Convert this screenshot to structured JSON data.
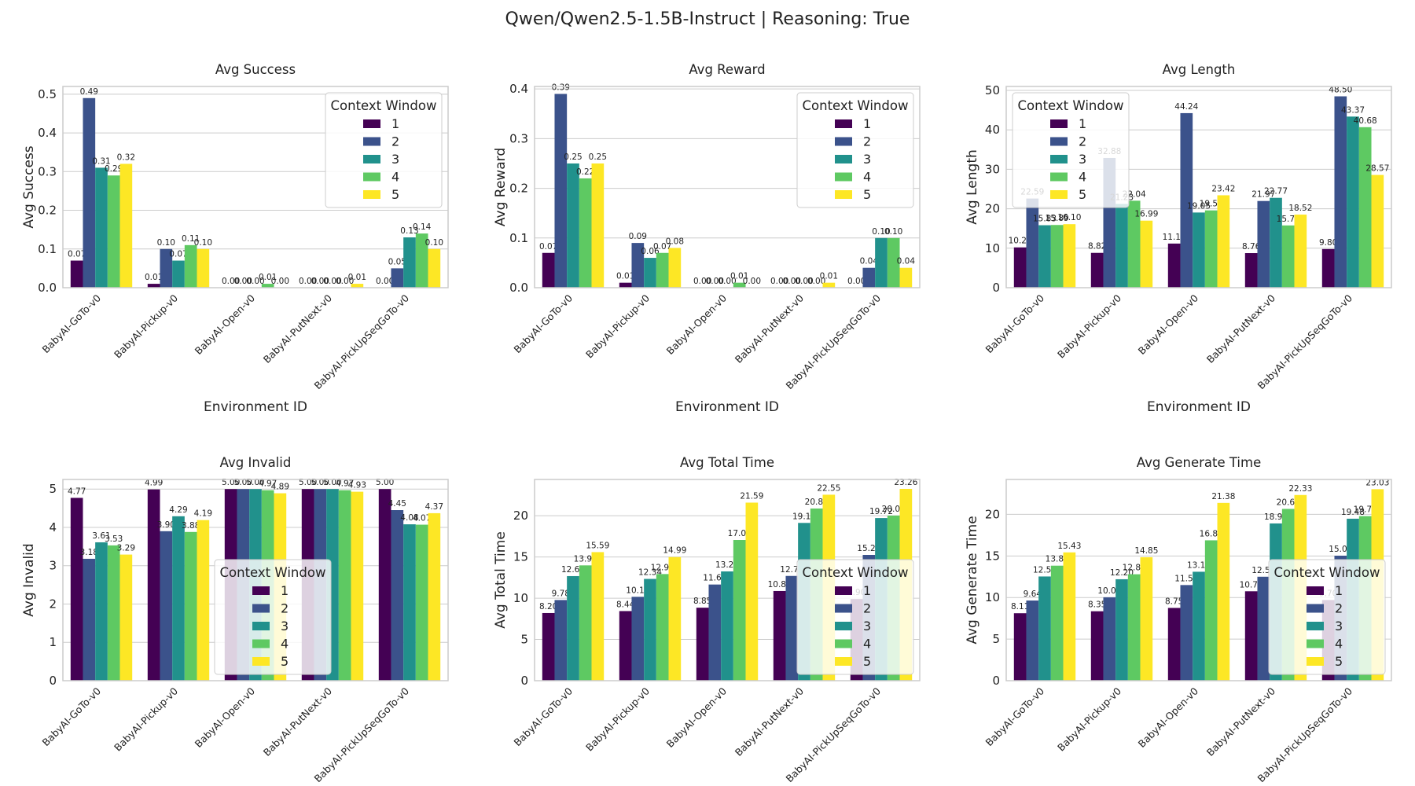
{
  "suptitle": "Qwen/Qwen2.5-1.5B-Instruct | Reasoning: True",
  "palette": [
    "#440154",
    "#3b528b",
    "#21918c",
    "#5ec962",
    "#fde725"
  ],
  "chart_data": [
    {
      "type": "bar",
      "title": "Avg Success",
      "xlabel": "Environment ID",
      "ylabel": "Avg Success",
      "categories": [
        "BabyAI-GoTo-v0",
        "BabyAI-Pickup-v0",
        "BabyAI-Open-v0",
        "BabyAI-PutNext-v0",
        "BabyAI-PickUpSeqGoTo-v0"
      ],
      "ylim": [
        0,
        0.52
      ],
      "yticks": [
        0.0,
        0.1,
        0.2,
        0.3,
        0.4,
        0.5
      ],
      "tick_decimals": 1,
      "legend_title": "Context Window",
      "legend_position": "upper right",
      "grid": true,
      "series": [
        {
          "name": "1",
          "values": [
            0.07,
            0.01,
            0.0,
            0.0,
            0.0
          ]
        },
        {
          "name": "2",
          "values": [
            0.49,
            0.1,
            0.0,
            0.0,
            0.05
          ]
        },
        {
          "name": "3",
          "values": [
            0.31,
            0.07,
            0.0,
            0.0,
            0.13
          ]
        },
        {
          "name": "4",
          "values": [
            0.29,
            0.11,
            0.01,
            0.0,
            0.14
          ]
        },
        {
          "name": "5",
          "values": [
            0.32,
            0.1,
            0.0,
            0.01,
            0.1
          ]
        }
      ]
    },
    {
      "type": "bar",
      "title": "Avg Reward",
      "xlabel": "Environment ID",
      "ylabel": "Avg Reward",
      "categories": [
        "BabyAI-GoTo-v0",
        "BabyAI-Pickup-v0",
        "BabyAI-Open-v0",
        "BabyAI-PutNext-v0",
        "BabyAI-PickUpSeqGoTo-v0"
      ],
      "ylim": [
        0,
        0.405
      ],
      "yticks": [
        0.0,
        0.1,
        0.2,
        0.3,
        0.4
      ],
      "tick_decimals": 1,
      "legend_title": "Context Window",
      "legend_position": "upper right",
      "grid": true,
      "series": [
        {
          "name": "1",
          "values": [
            0.07,
            0.01,
            0.0,
            0.0,
            0.0
          ]
        },
        {
          "name": "2",
          "values": [
            0.39,
            0.09,
            0.0,
            0.0,
            0.04
          ]
        },
        {
          "name": "3",
          "values": [
            0.25,
            0.06,
            0.0,
            0.0,
            0.1
          ]
        },
        {
          "name": "4",
          "values": [
            0.22,
            0.07,
            0.01,
            0.0,
            0.1
          ]
        },
        {
          "name": "5",
          "values": [
            0.25,
            0.08,
            0.0,
            0.01,
            0.04
          ]
        }
      ]
    },
    {
      "type": "bar",
      "title": "Avg Length",
      "xlabel": "Environment ID",
      "ylabel": "Avg Length",
      "categories": [
        "BabyAI-GoTo-v0",
        "BabyAI-Pickup-v0",
        "BabyAI-Open-v0",
        "BabyAI-PutNext-v0",
        "BabyAI-PickUpSeqGoTo-v0"
      ],
      "ylim": [
        0,
        51
      ],
      "yticks": [
        0,
        10,
        20,
        30,
        40,
        50
      ],
      "tick_decimals": 0,
      "legend_title": "Context Window",
      "legend_position": "upper left",
      "grid": true,
      "series": [
        {
          "name": "1",
          "values": [
            10.21,
            8.82,
            11.18,
            8.76,
            9.8
          ]
        },
        {
          "name": "2",
          "values": [
            22.59,
            32.88,
            44.24,
            21.97,
            48.5
          ]
        },
        {
          "name": "3",
          "values": [
            15.83,
            21.23,
            19.05,
            22.77,
            43.37
          ]
        },
        {
          "name": "4",
          "values": [
            15.89,
            22.04,
            19.59,
            15.78,
            40.68
          ]
        },
        {
          "name": "5",
          "values": [
            16.1,
            16.99,
            23.42,
            18.52,
            28.57
          ]
        }
      ]
    },
    {
      "type": "bar",
      "title": "Avg Invalid",
      "xlabel": "Environment ID",
      "ylabel": "Avg Invalid",
      "categories": [
        "BabyAI-GoTo-v0",
        "BabyAI-Pickup-v0",
        "BabyAI-Open-v0",
        "BabyAI-PutNext-v0",
        "BabyAI-PickUpSeqGoTo-v0"
      ],
      "ylim": [
        0,
        5.25
      ],
      "yticks": [
        0,
        1,
        2,
        3,
        4,
        5
      ],
      "tick_decimals": 0,
      "legend_title": "Context Window",
      "legend_position": "lower center",
      "grid": true,
      "series": [
        {
          "name": "1",
          "values": [
            4.77,
            4.99,
            5.0,
            5.0,
            5.0
          ]
        },
        {
          "name": "2",
          "values": [
            3.18,
            3.9,
            5.0,
            5.0,
            4.45
          ]
        },
        {
          "name": "3",
          "values": [
            3.61,
            4.29,
            5.0,
            5.0,
            4.08
          ]
        },
        {
          "name": "4",
          "values": [
            3.53,
            3.88,
            4.97,
            4.97,
            4.07
          ]
        },
        {
          "name": "5",
          "values": [
            3.29,
            4.19,
            4.89,
            4.93,
            4.37
          ]
        }
      ]
    },
    {
      "type": "bar",
      "title": "Avg Total Time",
      "xlabel": "Environment ID",
      "ylabel": "Avg Total Time",
      "categories": [
        "BabyAI-GoTo-v0",
        "BabyAI-Pickup-v0",
        "BabyAI-Open-v0",
        "BabyAI-PutNext-v0",
        "BabyAI-PickUpSeqGoTo-v0"
      ],
      "ylim": [
        0,
        24.4
      ],
      "yticks": [
        0,
        5,
        10,
        15,
        20
      ],
      "tick_decimals": 0,
      "legend_title": "Context Window",
      "legend_position": "lower right",
      "grid": true,
      "series": [
        {
          "name": "1",
          "values": [
            8.2,
            8.44,
            8.85,
            10.87,
            9.9
          ]
        },
        {
          "name": "2",
          "values": [
            9.78,
            10.17,
            11.66,
            12.7,
            15.25
          ]
        },
        {
          "name": "3",
          "values": [
            12.68,
            12.34,
            13.25,
            19.13,
            19.72
          ]
        },
        {
          "name": "4",
          "values": [
            13.98,
            12.93,
            17.06,
            20.88,
            20.02
          ]
        },
        {
          "name": "5",
          "values": [
            15.59,
            14.99,
            21.59,
            22.55,
            23.26
          ]
        }
      ]
    },
    {
      "type": "bar",
      "title": "Avg Generate Time",
      "xlabel": "Environment ID",
      "ylabel": "Avg Generate Time",
      "categories": [
        "BabyAI-GoTo-v0",
        "BabyAI-Pickup-v0",
        "BabyAI-Open-v0",
        "BabyAI-PutNext-v0",
        "BabyAI-PickUpSeqGoTo-v0"
      ],
      "ylim": [
        0,
        24.2
      ],
      "yticks": [
        0,
        5,
        10,
        15,
        20
      ],
      "tick_decimals": 0,
      "legend_title": "Context Window",
      "legend_position": "lower right",
      "grid": true,
      "series": [
        {
          "name": "1",
          "values": [
            8.11,
            8.35,
            8.75,
            10.75,
            9.7
          ]
        },
        {
          "name": "2",
          "values": [
            9.64,
            10.03,
            11.5,
            12.5,
            15.03
          ]
        },
        {
          "name": "3",
          "values": [
            12.53,
            12.2,
            13.1,
            18.91,
            19.48
          ]
        },
        {
          "name": "4",
          "values": [
            13.83,
            12.8,
            16.88,
            20.66,
            19.79
          ]
        },
        {
          "name": "5",
          "values": [
            15.43,
            14.85,
            21.38,
            22.33,
            23.03
          ]
        }
      ]
    }
  ]
}
